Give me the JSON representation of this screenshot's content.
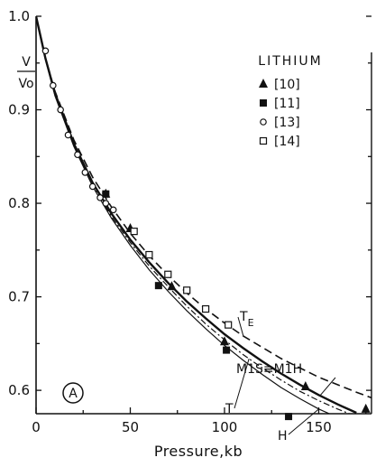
{
  "chart_data": {
    "type": "scatter",
    "title": "",
    "xlabel": "Pressure,kb",
    "ylabel": "V/Vo",
    "ylabel_parts": {
      "numerator": "V",
      "denominator": "Vo"
    },
    "xlim": [
      0,
      178
    ],
    "ylim": [
      0.575,
      1.0
    ],
    "x_ticks": [
      0,
      50,
      100,
      150
    ],
    "x_tick_labels": [
      "0",
      "50",
      "100",
      "150"
    ],
    "y_ticks": [
      0.6,
      0.7,
      0.8,
      0.9,
      1.0
    ],
    "y_tick_labels": [
      "0.6",
      "0.7",
      "0.8",
      "0.9",
      "1.0"
    ],
    "grid": false,
    "legend_title": "LITHIUM",
    "legend_position": "top-right",
    "panel_label": "A",
    "series": [
      {
        "name": "[10]",
        "marker": "filled-triangle",
        "x": [
          37,
          50,
          72,
          100,
          143,
          175
        ],
        "y": [
          0.81,
          0.773,
          0.711,
          0.652,
          0.604,
          0.58
        ]
      },
      {
        "name": "[11]",
        "marker": "filled-square",
        "x": [
          37,
          65,
          101,
          134
        ],
        "y": [
          0.81,
          0.712,
          0.643,
          0.572
        ]
      },
      {
        "name": "[13]",
        "marker": "open-circle",
        "x": [
          5,
          9,
          13,
          17,
          22,
          26,
          30,
          34,
          37,
          41
        ],
        "y": [
          0.963,
          0.926,
          0.9,
          0.873,
          0.852,
          0.833,
          0.818,
          0.806,
          0.8,
          0.793
        ]
      },
      {
        "name": "[14]",
        "marker": "open-square",
        "x": [
          52,
          60,
          70,
          80,
          90,
          102
        ],
        "y": [
          0.77,
          0.745,
          0.724,
          0.707,
          0.687,
          0.67
        ]
      }
    ],
    "curves": [
      {
        "label": "TE",
        "style": "dashed",
        "x": [
          0,
          5,
          10,
          20,
          30,
          40,
          50,
          60,
          70,
          80,
          90,
          100,
          110,
          120,
          130,
          140,
          150,
          160,
          170,
          178
        ],
        "y": [
          1.0,
          0.955,
          0.92,
          0.868,
          0.828,
          0.796,
          0.768,
          0.744,
          0.723,
          0.704,
          0.687,
          0.672,
          0.658,
          0.646,
          0.634,
          0.624,
          0.614,
          0.606,
          0.598,
          0.592
        ]
      },
      {
        "label": "M1S≡M1H",
        "style": "solid-thick",
        "x": [
          0,
          5,
          10,
          20,
          30,
          40,
          50,
          60,
          70,
          80,
          90,
          100,
          110,
          120,
          130,
          140,
          150,
          160,
          170
        ],
        "y": [
          1.0,
          0.955,
          0.918,
          0.864,
          0.822,
          0.789,
          0.761,
          0.737,
          0.715,
          0.695,
          0.677,
          0.66,
          0.645,
          0.631,
          0.618,
          0.606,
          0.595,
          0.585,
          0.576
        ]
      },
      {
        "label": "T",
        "style": "dash-dot",
        "x": [
          0,
          5,
          10,
          20,
          30,
          40,
          50,
          60,
          70,
          80,
          90,
          100,
          110,
          120,
          130,
          140,
          150,
          160,
          170
        ],
        "y": [
          1.0,
          0.954,
          0.916,
          0.862,
          0.82,
          0.786,
          0.758,
          0.733,
          0.711,
          0.69,
          0.671,
          0.654,
          0.638,
          0.624,
          0.611,
          0.599,
          0.589,
          0.58,
          0.572
        ]
      },
      {
        "label": "H",
        "style": "solid-thin",
        "x": [
          0,
          5,
          10,
          20,
          30,
          40,
          50,
          60,
          70,
          80,
          90,
          100,
          110,
          120,
          130,
          140,
          150,
          160,
          170
        ],
        "y": [
          1.0,
          0.954,
          0.915,
          0.861,
          0.818,
          0.784,
          0.755,
          0.729,
          0.706,
          0.685,
          0.666,
          0.648,
          0.632,
          0.617,
          0.603,
          0.591,
          0.58,
          0.571,
          0.563
        ]
      }
    ]
  }
}
